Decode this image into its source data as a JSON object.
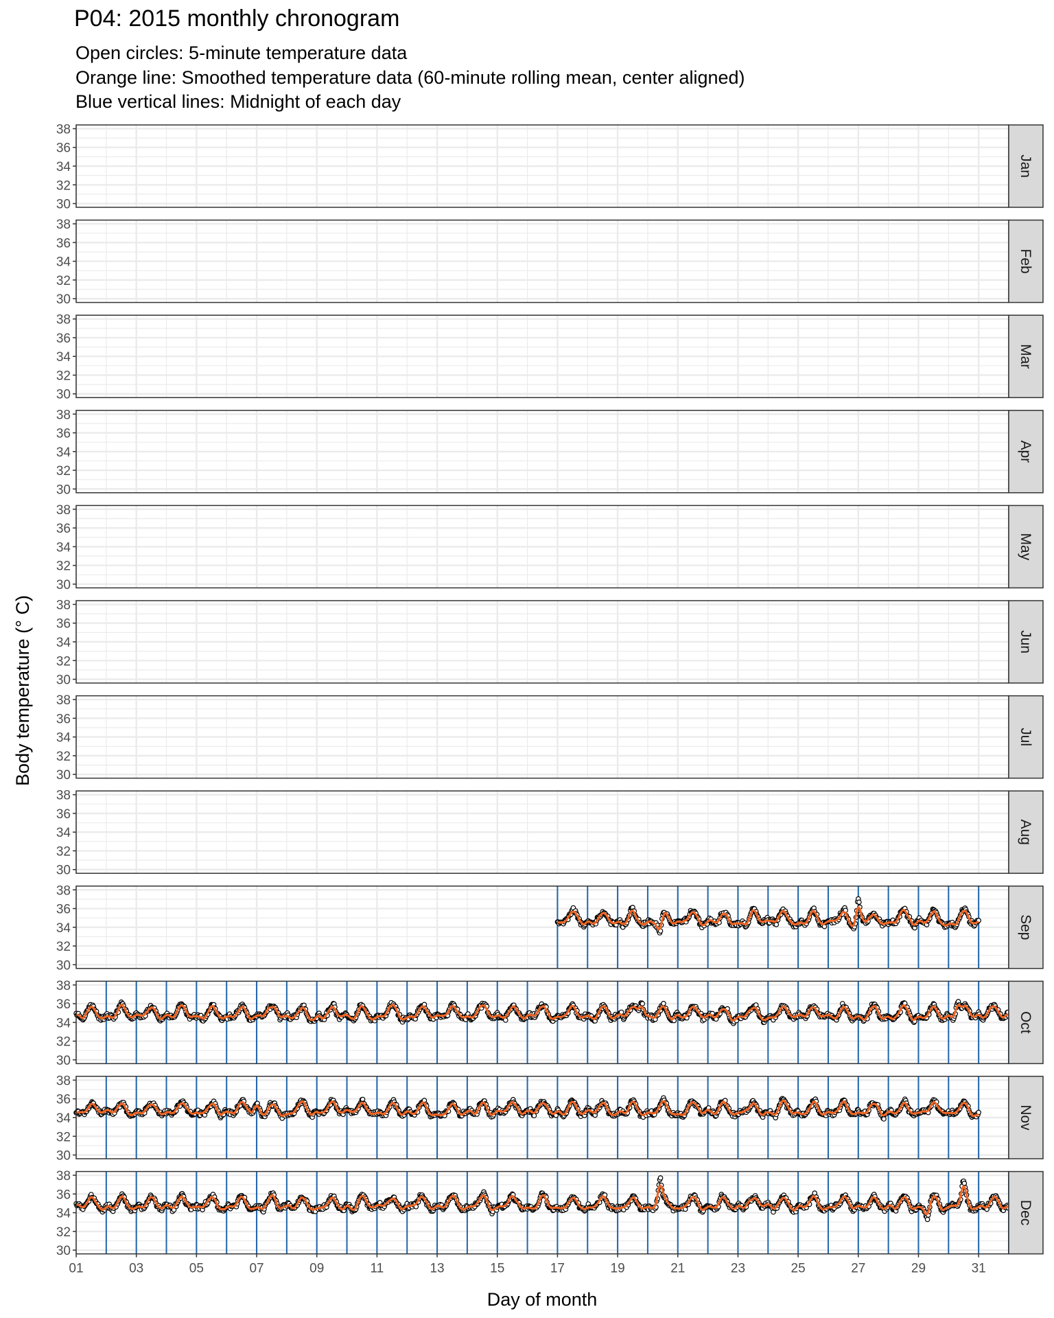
{
  "chart_data": {
    "type": "line",
    "title": "P04: 2015 monthly chronogram",
    "subtitle_lines": [
      "Open circles: 5-minute temperature data",
      "Orange line: Smoothed temperature data (60-minute rolling mean, center aligned)",
      "Blue vertical lines: Midnight of each day"
    ],
    "xlabel": "Day of month",
    "ylabel": "Body temperature (° C)",
    "xlim": [
      1,
      32
    ],
    "ylim": [
      30,
      38
    ],
    "x_ticks": [
      "01",
      "03",
      "05",
      "07",
      "09",
      "11",
      "13",
      "15",
      "17",
      "19",
      "21",
      "23",
      "25",
      "27",
      "29",
      "31"
    ],
    "y_ticks": [
      30,
      32,
      34,
      36,
      38
    ],
    "facets": [
      "Jan",
      "Feb",
      "Mar",
      "Apr",
      "May",
      "Jun",
      "Jul",
      "Aug",
      "Sep",
      "Oct",
      "Nov",
      "Dec"
    ],
    "grid": true,
    "colors": {
      "points": "#000000",
      "smooth_line": "#f26522",
      "midnight_lines": "#2166ac",
      "panel_border": "#333333",
      "grid": "#ebebeb",
      "strip_fill": "#d9d9d9"
    },
    "series": [
      {
        "month": "Sep",
        "start_day": 17,
        "end_day": 31,
        "baseline": 34.8,
        "notes_points": [
          [
            20.4,
            32.6
          ],
          [
            27.0,
            37.3
          ]
        ]
      },
      {
        "month": "Oct",
        "start_day": 1,
        "end_day": 32,
        "baseline": 34.9,
        "notes_points": [
          [
            19.8,
            36.6
          ],
          [
            30.3,
            36.5
          ]
        ]
      },
      {
        "month": "Nov",
        "start_day": 1,
        "end_day": 31,
        "baseline": 34.8,
        "notes_points": [
          [
            7.0,
            35.9
          ]
        ]
      },
      {
        "month": "Dec",
        "start_day": 1,
        "end_day": 32,
        "baseline": 34.9,
        "notes_points": [
          [
            20.4,
            37.4
          ],
          [
            29.3,
            33.3
          ],
          [
            30.5,
            36.7
          ]
        ]
      }
    ]
  }
}
